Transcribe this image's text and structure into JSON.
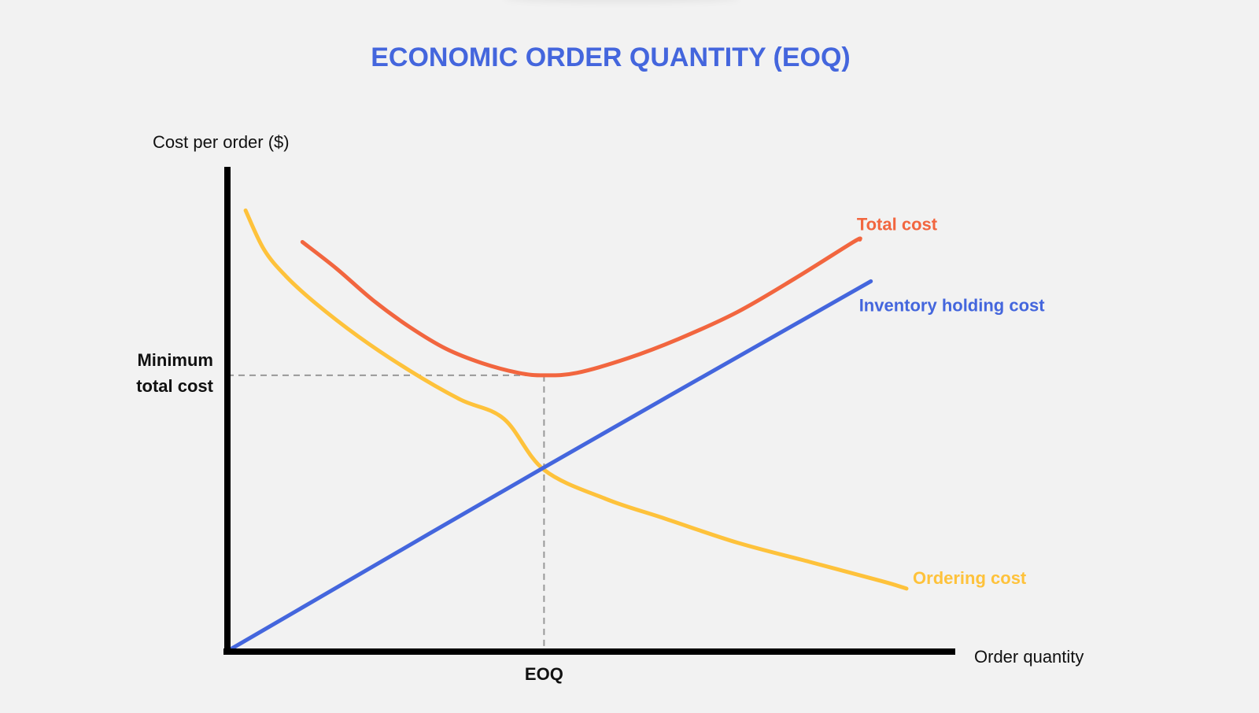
{
  "chart_data": {
    "type": "line",
    "title": "ECONOMIC ORDER QUANTITY (EOQ)",
    "xlabel": "Order quantity",
    "ylabel": "Cost per order ($)",
    "xlim": [
      0,
      100
    ],
    "ylim": [
      0,
      100
    ],
    "grid": false,
    "annotations": {
      "min_total_cost_label": "Minimum\ntotal cost",
      "eoq_label": "EOQ",
      "eoq_x": 43.5,
      "min_total_cost_y": 57
    },
    "series": [
      {
        "name": "Total cost",
        "color": "#f2663f",
        "points": [
          [
            10.3,
            84.5
          ],
          [
            15,
            79
          ],
          [
            20,
            72.5
          ],
          [
            25,
            67
          ],
          [
            30,
            62.5
          ],
          [
            35,
            59.5
          ],
          [
            40,
            57.5
          ],
          [
            43.5,
            57
          ],
          [
            48,
            57.5
          ],
          [
            55,
            60.5
          ],
          [
            62,
            64.5
          ],
          [
            70,
            70
          ],
          [
            78,
            77
          ],
          [
            86,
            84.5
          ],
          [
            86.9,
            85
          ]
        ]
      },
      {
        "name": "Inventory holding cost",
        "color": "#4466dd",
        "points": [
          [
            0.2,
            0.3
          ],
          [
            43.5,
            38
          ],
          [
            88.4,
            76.4
          ]
        ]
      },
      {
        "name": "Ordering cost",
        "color": "#fec23b",
        "points": [
          [
            2.5,
            91
          ],
          [
            5,
            83
          ],
          [
            8,
            77.5
          ],
          [
            12,
            72
          ],
          [
            18,
            65
          ],
          [
            25,
            58
          ],
          [
            32,
            52
          ],
          [
            38,
            48
          ],
          [
            43.5,
            37.5
          ],
          [
            52,
            31.5
          ],
          [
            60,
            27.5
          ],
          [
            70,
            22.5
          ],
          [
            80,
            18.5
          ],
          [
            90,
            14.5
          ],
          [
            93.3,
            13
          ]
        ]
      }
    ]
  }
}
